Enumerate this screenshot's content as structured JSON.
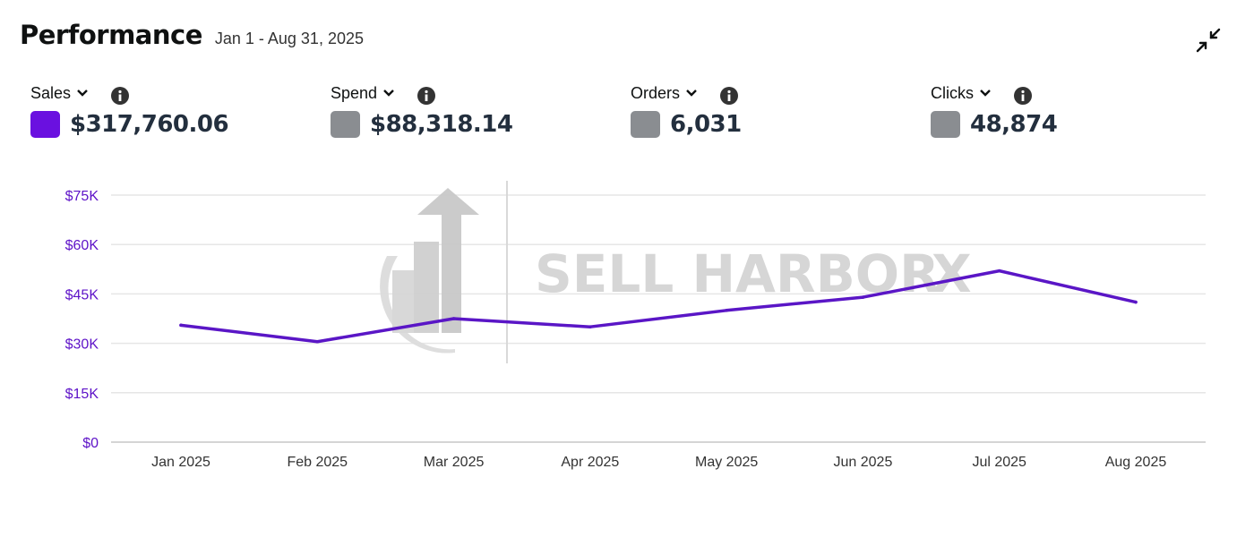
{
  "header": {
    "title": "Performance",
    "date_range": "Jan 1 - Aug 31, 2025"
  },
  "metrics": [
    {
      "label": "Sales",
      "value": "$317,760.06",
      "color": "#6a10e0",
      "active": true
    },
    {
      "label": "Spend",
      "value": "$88,318.14",
      "color": "#8a8d91",
      "active": false
    },
    {
      "label": "Orders",
      "value": "6,031",
      "color": "#8a8d91",
      "active": false
    },
    {
      "label": "Clicks",
      "value": "48,874",
      "color": "#8a8d91",
      "active": false
    }
  ],
  "icons": {
    "collapse": "collapse-arrows-icon",
    "dropdown": "chevron-down-icon",
    "info": "info-icon"
  },
  "watermark": {
    "text": "SELL HARBOR",
    "accent": "X"
  },
  "chart_data": {
    "type": "line",
    "categories": [
      "Jan 2025",
      "Feb 2025",
      "Mar 2025",
      "Apr 2025",
      "May 2025",
      "Jun 2025",
      "Jul 2025",
      "Aug 2025"
    ],
    "series": [
      {
        "name": "Sales",
        "color": "#5a16c6",
        "values": [
          35500,
          30500,
          37500,
          35000,
          40000,
          44000,
          52000,
          42500
        ]
      }
    ],
    "y_ticks": [
      "$0",
      "$15K",
      "$30K",
      "$45K",
      "$60K",
      "$75K"
    ],
    "y_tick_values": [
      0,
      15000,
      30000,
      45000,
      60000,
      75000
    ],
    "ylim": [
      0,
      75000
    ],
    "grid": true,
    "tick_color": "#5d12c8"
  }
}
